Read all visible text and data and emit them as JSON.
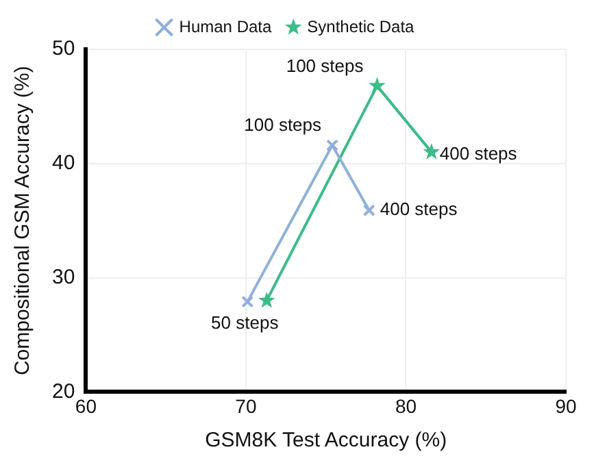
{
  "chart_data": {
    "type": "line",
    "xlabel": "GSM8K Test Accuracy (%)",
    "ylabel": "Compositional GSM Accuracy (%)",
    "xlim": [
      60,
      90
    ],
    "xticks": [
      60,
      70,
      80,
      90
    ],
    "ylim": [
      20,
      50
    ],
    "yticks": [
      20,
      30,
      40,
      50
    ],
    "grid": true,
    "legend": "top",
    "series": [
      {
        "name": "Human Data",
        "color": "#8fb0d9",
        "marker": "cross",
        "x": [
          70.1,
          75.4,
          77.7
        ],
        "values": [
          27.9,
          41.6,
          35.9
        ]
      },
      {
        "name": "Synthetic Data",
        "color": "#3dbb8a",
        "marker": "star",
        "x": [
          71.3,
          78.2,
          81.6
        ],
        "values": [
          28.0,
          46.8,
          41.0
        ]
      }
    ],
    "annotations": [
      {
        "text": "50 steps",
        "x": 70.1,
        "y": 27.9
      },
      {
        "text": "100 steps",
        "x": 75.4,
        "y": 41.6
      },
      {
        "text": "400 steps",
        "x": 77.7,
        "y": 35.9
      },
      {
        "text": "100 steps",
        "x": 78.2,
        "y": 46.8
      },
      {
        "text": "400 steps",
        "x": 81.6,
        "y": 41.0
      }
    ]
  }
}
